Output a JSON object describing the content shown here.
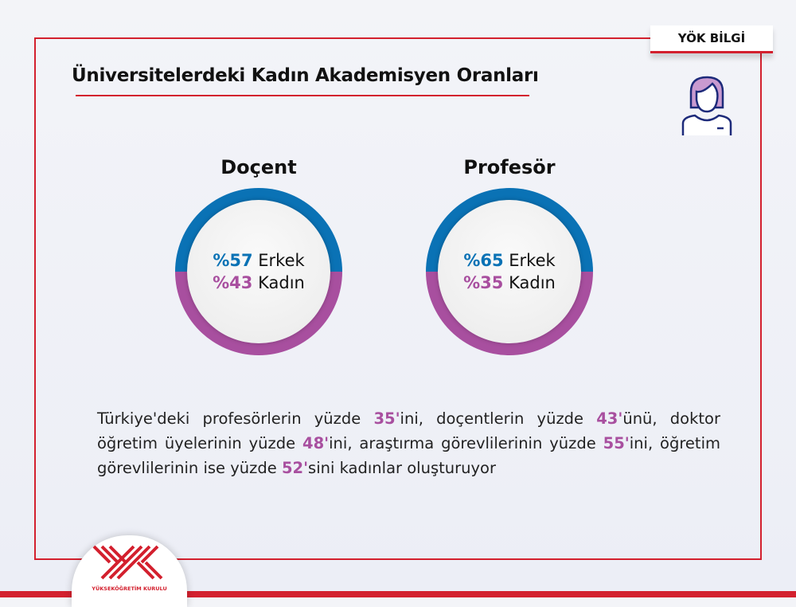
{
  "header": {
    "tag": "YÖK BİLGİ",
    "title": "Üniversitelerdeki Kadın Akademisyen Oranları"
  },
  "colors": {
    "male": "#0a72b5",
    "female": "#a84f9f",
    "accent": "#d3202e"
  },
  "chart_data": [
    {
      "type": "pie",
      "title": "Doçent",
      "categories": [
        "Erkek",
        "Kadın"
      ],
      "values": [
        57,
        43
      ],
      "labels": [
        {
          "pct": "%57",
          "name": "Erkek"
        },
        {
          "pct": "%43",
          "name": "Kadın"
        }
      ]
    },
    {
      "type": "pie",
      "title": "Profesör",
      "categories": [
        "Erkek",
        "Kadın"
      ],
      "values": [
        65,
        35
      ],
      "labels": [
        {
          "pct": "%65",
          "name": "Erkek"
        },
        {
          "pct": "%35",
          "name": "Kadın"
        }
      ]
    }
  ],
  "paragraph": {
    "p1": "Türkiye'deki profesörlerin yüzde ",
    "n1": "35'",
    "p2": "ini, doçentlerin yüzde ",
    "n2": "43'",
    "p3": "ünü, doktor öğretim üyelerinin yüzde ",
    "n3": "48'",
    "p4": "ini, araştırma görevlilerinin yüzde ",
    "n4": "55'",
    "p5": "ini, öğretim görevlilerinin ise yüzde ",
    "n5": "52'",
    "p6": "sini kadınlar oluşturuyor"
  },
  "logo": {
    "text": "YÜKSEKÖĞRETİM KURULU",
    "icon": "yok-logo"
  },
  "avatar_icon": "woman-avatar-icon"
}
